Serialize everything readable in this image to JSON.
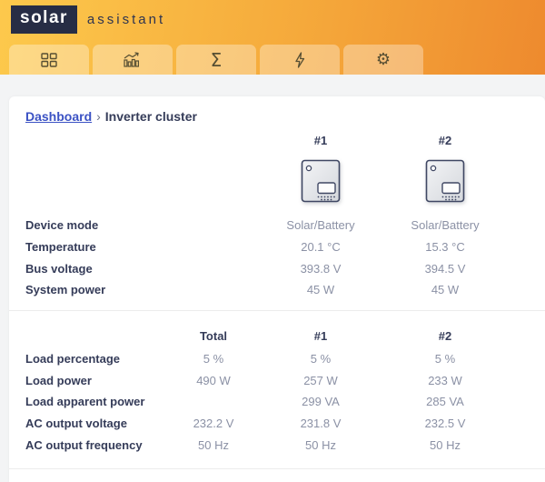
{
  "app": {
    "logo_primary": "solar",
    "logo_secondary": "assistant"
  },
  "nav_tabs": [
    {
      "id": "dashboard",
      "icon": "grid-icon"
    },
    {
      "id": "charts",
      "icon": "bar-chart-icon"
    },
    {
      "id": "totals",
      "icon": "sigma-icon"
    },
    {
      "id": "power",
      "icon": "bolt-icon"
    },
    {
      "id": "settings",
      "icon": "gear-icon"
    }
  ],
  "icons": {
    "sigma_glyph": "Σ",
    "gear_glyph": "⚙"
  },
  "breadcrumb": {
    "link_label": "Dashboard",
    "separator": "›",
    "current": "Inverter cluster"
  },
  "cluster_table": {
    "device_icon": "inverter-icon",
    "columns": [
      "#1",
      "#2"
    ],
    "rows": [
      {
        "label": "Device mode",
        "values": [
          "Solar/Battery",
          "Solar/Battery"
        ]
      },
      {
        "label": "Temperature",
        "values": [
          "20.1 °C",
          "15.3 °C"
        ]
      },
      {
        "label": "Bus voltage",
        "values": [
          "393.8 V",
          "394.5 V"
        ]
      },
      {
        "label": "System power",
        "values": [
          "45 W",
          "45 W"
        ]
      }
    ]
  },
  "load_table": {
    "columns": [
      "Total",
      "#1",
      "#2"
    ],
    "rows": [
      {
        "label": "Load percentage",
        "values": [
          "5 %",
          "5 %",
          "5 %"
        ]
      },
      {
        "label": "Load power",
        "values": [
          "490 W",
          "257 W",
          "233 W"
        ]
      },
      {
        "label": "Load apparent power",
        "values": [
          "",
          "299 VA",
          "285 VA"
        ]
      },
      {
        "label": "AC output voltage",
        "values": [
          "232.2 V",
          "231.8 V",
          "232.5 V"
        ]
      },
      {
        "label": "AC output frequency",
        "values": [
          "50 Hz",
          "50 Hz",
          "50 Hz"
        ]
      }
    ]
  },
  "colors": {
    "header_gradient_start": "#fdc94c",
    "header_gradient_end": "#ee8a2e",
    "logo_bg": "#272d45",
    "logo_accent": "#d8402a",
    "link_blue": "#3b52c4",
    "heading_text": "#353c59",
    "value_text": "#8b91a5"
  }
}
